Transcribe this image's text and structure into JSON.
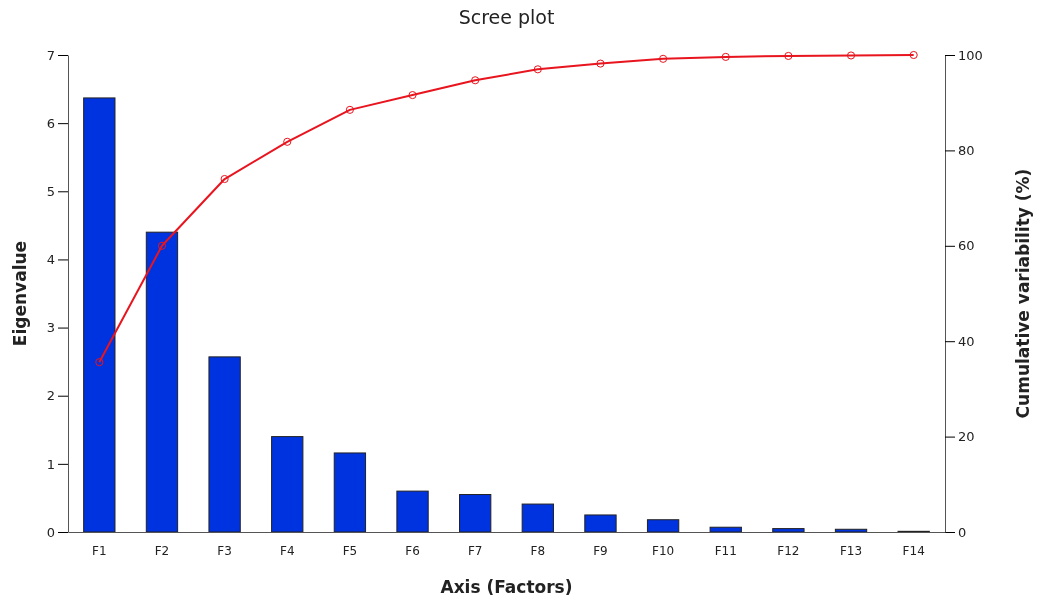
{
  "chart_data": {
    "type": "bar",
    "title": "Scree plot",
    "xlabel": "Axis (Factors)",
    "ylabel": "Eigenvalue",
    "y2label": "Cumulative variability (%)",
    "categories": [
      "F1",
      "F2",
      "F3",
      "F4",
      "F5",
      "F6",
      "F7",
      "F8",
      "F9",
      "F10",
      "F11",
      "F12",
      "F13",
      "F14"
    ],
    "series": [
      {
        "color": "#0033e0",
        "values": [
          6.37,
          4.4,
          2.57,
          1.4,
          1.16,
          0.6,
          0.55,
          0.41,
          0.25,
          0.18,
          0.07,
          0.05,
          0.04,
          0.01
        ]
      },
      {
        "type": "line",
        "axis": "y2",
        "color": "#e8141e",
        "marker": "circle",
        "line_style": "solid",
        "values": [
          35.6,
          60.0,
          74.0,
          81.8,
          88.5,
          91.6,
          94.7,
          97.0,
          98.2,
          99.2,
          99.6,
          99.8,
          99.9,
          100
        ]
      }
    ],
    "ylim": [
      0,
      7
    ],
    "yticks": [
      0,
      1,
      2,
      3,
      4,
      5,
      6,
      7
    ],
    "y2lim": [
      0,
      100
    ],
    "y2ticks": [
      0,
      20,
      40,
      60,
      80,
      100
    ],
    "grid": false
  }
}
